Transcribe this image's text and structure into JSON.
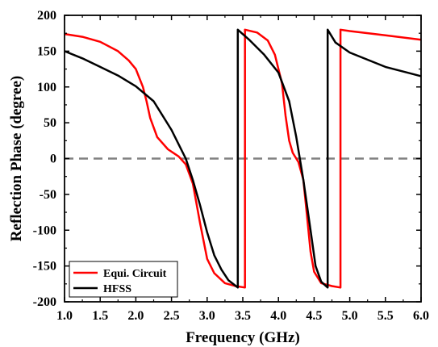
{
  "chart_data": {
    "type": "line",
    "xlabel": "Frequency (GHz)",
    "ylabel": "Reflection Phase (degree)",
    "xlim": [
      1.0,
      6.0
    ],
    "ylim": [
      -200,
      200
    ],
    "x_ticks": [
      "1.0",
      "1.5",
      "2.0",
      "2.5",
      "3.0",
      "3.5",
      "4.0",
      "4.5",
      "5.0",
      "5.5",
      "6.0"
    ],
    "y_ticks": [
      "-200",
      "-150",
      "-100",
      "-50",
      "0",
      "50",
      "100",
      "150",
      "200"
    ],
    "grid": false,
    "legend_position": "bottom-left",
    "reference_line": {
      "y": 0,
      "style": "dashed",
      "color": "#808080"
    },
    "series": [
      {
        "name": "Equi. Circuit",
        "color": "#ff0000",
        "points": [
          [
            1.0,
            174
          ],
          [
            1.25,
            170
          ],
          [
            1.5,
            163
          ],
          [
            1.75,
            150
          ],
          [
            1.9,
            137
          ],
          [
            2.0,
            125
          ],
          [
            2.1,
            100
          ],
          [
            2.15,
            80
          ],
          [
            2.2,
            57
          ],
          [
            2.3,
            30
          ],
          [
            2.45,
            13
          ],
          [
            2.6,
            3
          ],
          [
            2.7,
            -8
          ],
          [
            2.8,
            -35
          ],
          [
            2.9,
            -90
          ],
          [
            3.0,
            -140
          ],
          [
            3.1,
            -160
          ],
          [
            3.25,
            -174
          ],
          [
            3.4,
            -178
          ],
          [
            3.53,
            -180
          ],
          [
            3.53,
            180
          ],
          [
            3.7,
            176
          ],
          [
            3.85,
            165
          ],
          [
            3.95,
            145
          ],
          [
            4.05,
            105
          ],
          [
            4.1,
            60
          ],
          [
            4.15,
            25
          ],
          [
            4.2,
            8
          ],
          [
            4.28,
            -5
          ],
          [
            4.35,
            -30
          ],
          [
            4.4,
            -80
          ],
          [
            4.45,
            -130
          ],
          [
            4.5,
            -158
          ],
          [
            4.6,
            -174
          ],
          [
            4.75,
            -178
          ],
          [
            4.87,
            -180
          ],
          [
            4.87,
            180
          ],
          [
            5.0,
            178
          ],
          [
            5.5,
            172
          ],
          [
            6.0,
            166
          ]
        ]
      },
      {
        "name": "HFSS",
        "color": "#000000",
        "points": [
          [
            1.0,
            150
          ],
          [
            1.25,
            140
          ],
          [
            1.5,
            128
          ],
          [
            1.75,
            116
          ],
          [
            2.0,
            101
          ],
          [
            2.25,
            80
          ],
          [
            2.5,
            40
          ],
          [
            2.6,
            20
          ],
          [
            2.7,
            0
          ],
          [
            2.8,
            -30
          ],
          [
            2.9,
            -65
          ],
          [
            3.0,
            -103
          ],
          [
            3.1,
            -135
          ],
          [
            3.2,
            -155
          ],
          [
            3.3,
            -170
          ],
          [
            3.43,
            -180
          ],
          [
            3.43,
            180
          ],
          [
            3.6,
            165
          ],
          [
            3.8,
            145
          ],
          [
            4.0,
            120
          ],
          [
            4.15,
            80
          ],
          [
            4.25,
            30
          ],
          [
            4.35,
            -30
          ],
          [
            4.45,
            -100
          ],
          [
            4.52,
            -150
          ],
          [
            4.6,
            -172
          ],
          [
            4.69,
            -180
          ],
          [
            4.69,
            180
          ],
          [
            4.8,
            162
          ],
          [
            5.0,
            148
          ],
          [
            5.5,
            128
          ],
          [
            6.0,
            115
          ]
        ]
      }
    ]
  }
}
